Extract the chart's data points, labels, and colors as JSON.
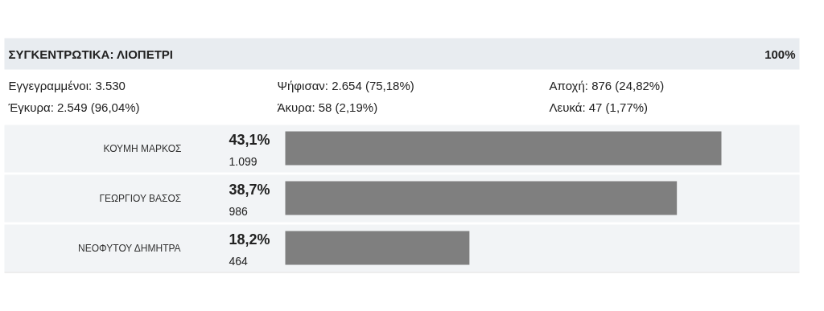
{
  "chart_data": {
    "type": "bar",
    "orientation": "horizontal",
    "title": "ΣΥΓΚΕΝΤΡΩΤΙΚΑ: ΛΙΟΠΕΤΡΙ",
    "categories": [
      "ΚΟΥΜΗ ΜΑΡΚΟΣ",
      "ΓΕΩΡΓΙΟΥ ΒΑΣΟΣ",
      "ΝΕΟΦΥΤΟΥ ΔΗΜΗΤΡΑ"
    ],
    "values": [
      43.1,
      38.7,
      18.2
    ],
    "color": "#7f7f7f",
    "value_labels": [
      "43,1%",
      "38,7%",
      "18,2%"
    ],
    "annotations": [
      "100%",
      "Εγγεγραμμένοι: 3.530",
      "Ψήφισαν: 2.654 (75,18%)",
      "Αποχή: 876 (24,82%)",
      "Έγκυρα: 2.549 (96,04%)",
      "Άκυρα: 58 (2,19%)",
      "Λευκά: 47 (1,77%)",
      "1.099",
      "986",
      "464"
    ],
    "grid": false
  }
}
